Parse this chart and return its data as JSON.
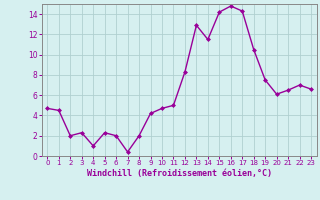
{
  "x": [
    0,
    1,
    2,
    3,
    4,
    5,
    6,
    7,
    8,
    9,
    10,
    11,
    12,
    13,
    14,
    15,
    16,
    17,
    18,
    19,
    20,
    21,
    22,
    23
  ],
  "y": [
    4.7,
    4.5,
    2.0,
    2.3,
    1.0,
    2.3,
    2.0,
    0.4,
    2.0,
    4.2,
    4.7,
    5.0,
    8.3,
    12.9,
    11.5,
    14.2,
    14.8,
    14.3,
    10.5,
    7.5,
    6.1,
    6.5,
    7.0,
    6.6
  ],
  "xlim": [
    -0.5,
    23.5
  ],
  "ylim": [
    0,
    15
  ],
  "yticks": [
    0,
    2,
    4,
    6,
    8,
    10,
    12,
    14
  ],
  "xticks": [
    0,
    1,
    2,
    3,
    4,
    5,
    6,
    7,
    8,
    9,
    10,
    11,
    12,
    13,
    14,
    15,
    16,
    17,
    18,
    19,
    20,
    21,
    22,
    23
  ],
  "line_color": "#990099",
  "marker": "D",
  "marker_size": 2,
  "bg_color": "#d6f0f0",
  "grid_color": "#b0d0d0",
  "xlabel": "Windchill (Refroidissement éolien,°C)",
  "xlabel_color": "#990099",
  "tick_color": "#990099",
  "axis_color": "#888888",
  "linewidth": 1.0
}
